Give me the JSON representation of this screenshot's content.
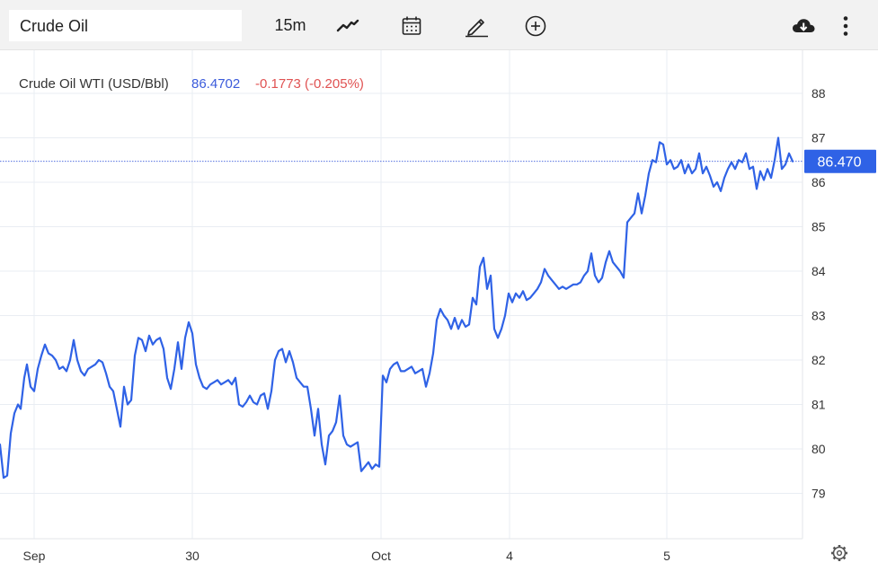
{
  "toolbar": {
    "symbol": "Crude Oil",
    "interval": "15m",
    "icons": [
      "line-chart-icon",
      "calendar-icon",
      "draw-pencil-icon",
      "add-circle-icon",
      "cloud-download-icon",
      "more-vertical-icon"
    ]
  },
  "legend": {
    "name": "Crude Oil WTI (USD/Bbl)",
    "last": "86.4702",
    "change": "-0.1773 (-0.205%)",
    "last_color": "#3b5bdb",
    "change_color": "#e05252"
  },
  "price_tag": "86.470",
  "colors": {
    "line": "#2f62e6",
    "grid": "#e9edf3",
    "tag": "#2f62e6"
  },
  "chart_data": {
    "type": "line",
    "title": "Crude Oil WTI (USD/Bbl)",
    "xlabel": "",
    "ylabel": "",
    "ylim": [
      78.0,
      89.0
    ],
    "yticks": [
      79,
      80,
      81,
      82,
      83,
      84,
      85,
      86,
      87,
      88
    ],
    "xticks": [
      {
        "label": "Sep",
        "t": 38
      },
      {
        "label": "30",
        "t": 214
      },
      {
        "label": "Oct",
        "t": 424
      },
      {
        "label": "4",
        "t": 567
      },
      {
        "label": "5",
        "t": 742
      }
    ],
    "last_value": 86.47,
    "grid": true,
    "series": [
      {
        "values": [
          [
            0,
            80.1
          ],
          [
            4,
            79.35
          ],
          [
            8,
            79.4
          ],
          [
            12,
            80.35
          ],
          [
            16,
            80.8
          ],
          [
            20,
            81
          ],
          [
            23,
            80.9
          ],
          [
            27,
            81.6
          ],
          [
            30,
            81.9
          ],
          [
            34,
            81.4
          ],
          [
            38,
            81.3
          ],
          [
            42,
            81.8
          ],
          [
            46,
            82.1
          ],
          [
            50,
            82.35
          ],
          [
            54,
            82.15
          ],
          [
            58,
            82.1
          ],
          [
            62,
            82
          ],
          [
            66,
            81.8
          ],
          [
            70,
            81.85
          ],
          [
            74,
            81.75
          ],
          [
            78,
            82
          ],
          [
            82,
            82.45
          ],
          [
            86,
            82
          ],
          [
            90,
            81.75
          ],
          [
            94,
            81.65
          ],
          [
            98,
            81.8
          ],
          [
            102,
            81.85
          ],
          [
            106,
            81.9
          ],
          [
            110,
            82
          ],
          [
            114,
            81.95
          ],
          [
            118,
            81.7
          ],
          [
            122,
            81.4
          ],
          [
            126,
            81.3
          ],
          [
            130,
            80.9
          ],
          [
            134,
            80.5
          ],
          [
            138,
            81.4
          ],
          [
            142,
            81
          ],
          [
            146,
            81.1
          ],
          [
            150,
            82.1
          ],
          [
            154,
            82.5
          ],
          [
            158,
            82.45
          ],
          [
            162,
            82.2
          ],
          [
            166,
            82.55
          ],
          [
            170,
            82.35
          ],
          [
            174,
            82.45
          ],
          [
            178,
            82.5
          ],
          [
            182,
            82.25
          ],
          [
            186,
            81.6
          ],
          [
            190,
            81.35
          ],
          [
            194,
            81.8
          ],
          [
            198,
            82.4
          ],
          [
            202,
            81.8
          ],
          [
            206,
            82.5
          ],
          [
            210,
            82.85
          ],
          [
            214,
            82.6
          ],
          [
            218,
            81.9
          ],
          [
            222,
            81.6
          ],
          [
            226,
            81.4
          ],
          [
            230,
            81.35
          ],
          [
            234,
            81.45
          ],
          [
            238,
            81.5
          ],
          [
            242,
            81.55
          ],
          [
            246,
            81.45
          ],
          [
            250,
            81.5
          ],
          [
            254,
            81.55
          ],
          [
            258,
            81.45
          ],
          [
            262,
            81.6
          ],
          [
            266,
            81
          ],
          [
            270,
            80.95
          ],
          [
            274,
            81.05
          ],
          [
            278,
            81.2
          ],
          [
            282,
            81.05
          ],
          [
            286,
            81
          ],
          [
            290,
            81.2
          ],
          [
            294,
            81.25
          ],
          [
            298,
            80.9
          ],
          [
            302,
            81.3
          ],
          [
            306,
            82
          ],
          [
            310,
            82.2
          ],
          [
            314,
            82.25
          ],
          [
            318,
            81.95
          ],
          [
            322,
            82.2
          ],
          [
            326,
            81.95
          ],
          [
            330,
            81.6
          ],
          [
            334,
            81.5
          ],
          [
            338,
            81.4
          ],
          [
            342,
            81.4
          ],
          [
            346,
            80.9
          ],
          [
            350,
            80.3
          ],
          [
            354,
            80.9
          ],
          [
            358,
            80.1
          ],
          [
            362,
            79.65
          ],
          [
            366,
            80.3
          ],
          [
            370,
            80.4
          ],
          [
            374,
            80.6
          ],
          [
            378,
            81.2
          ],
          [
            382,
            80.3
          ],
          [
            386,
            80.1
          ],
          [
            390,
            80.05
          ],
          [
            394,
            80.1
          ],
          [
            398,
            80.15
          ],
          [
            402,
            79.5
          ],
          [
            406,
            79.6
          ],
          [
            410,
            79.7
          ],
          [
            414,
            79.55
          ],
          [
            418,
            79.65
          ],
          [
            422,
            79.6
          ],
          [
            426,
            81.65
          ],
          [
            430,
            81.5
          ],
          [
            434,
            81.8
          ],
          [
            438,
            81.9
          ],
          [
            442,
            81.95
          ],
          [
            446,
            81.75
          ],
          [
            450,
            81.75
          ],
          [
            454,
            81.8
          ],
          [
            458,
            81.85
          ],
          [
            462,
            81.7
          ],
          [
            466,
            81.75
          ],
          [
            470,
            81.8
          ],
          [
            474,
            81.4
          ],
          [
            478,
            81.7
          ],
          [
            482,
            82.15
          ],
          [
            486,
            82.9
          ],
          [
            490,
            83.15
          ],
          [
            494,
            83
          ],
          [
            498,
            82.9
          ],
          [
            502,
            82.7
          ],
          [
            506,
            82.95
          ],
          [
            510,
            82.7
          ],
          [
            514,
            82.9
          ],
          [
            518,
            82.75
          ],
          [
            522,
            82.8
          ],
          [
            526,
            83.4
          ],
          [
            530,
            83.25
          ],
          [
            534,
            84.1
          ],
          [
            538,
            84.3
          ],
          [
            542,
            83.6
          ],
          [
            546,
            83.9
          ],
          [
            550,
            82.7
          ],
          [
            554,
            82.5
          ],
          [
            558,
            82.7
          ],
          [
            562,
            83
          ],
          [
            566,
            83.5
          ],
          [
            570,
            83.3
          ],
          [
            574,
            83.5
          ],
          [
            578,
            83.4
          ],
          [
            582,
            83.55
          ],
          [
            586,
            83.35
          ],
          [
            590,
            83.4
          ],
          [
            594,
            83.5
          ],
          [
            598,
            83.6
          ],
          [
            602,
            83.75
          ],
          [
            606,
            84.05
          ],
          [
            610,
            83.9
          ],
          [
            614,
            83.8
          ],
          [
            618,
            83.7
          ],
          [
            622,
            83.6
          ],
          [
            626,
            83.65
          ],
          [
            630,
            83.6
          ],
          [
            634,
            83.65
          ],
          [
            638,
            83.7
          ],
          [
            642,
            83.7
          ],
          [
            646,
            83.75
          ],
          [
            650,
            83.9
          ],
          [
            654,
            84
          ],
          [
            658,
            84.4
          ],
          [
            662,
            83.9
          ],
          [
            666,
            83.75
          ],
          [
            670,
            83.85
          ],
          [
            674,
            84.2
          ],
          [
            678,
            84.45
          ],
          [
            682,
            84.2
          ],
          [
            686,
            84.1
          ],
          [
            690,
            84.0
          ],
          [
            694,
            83.85
          ],
          [
            698,
            85.1
          ],
          [
            702,
            85.2
          ],
          [
            706,
            85.3
          ],
          [
            710,
            85.75
          ],
          [
            714,
            85.3
          ],
          [
            718,
            85.7
          ],
          [
            722,
            86.2
          ],
          [
            726,
            86.5
          ],
          [
            730,
            86.45
          ],
          [
            734,
            86.9
          ],
          [
            738,
            86.85
          ],
          [
            742,
            86.4
          ],
          [
            746,
            86.5
          ],
          [
            750,
            86.3
          ],
          [
            754,
            86.35
          ],
          [
            758,
            86.5
          ],
          [
            762,
            86.2
          ],
          [
            766,
            86.4
          ],
          [
            770,
            86.2
          ],
          [
            774,
            86.3
          ],
          [
            778,
            86.65
          ],
          [
            782,
            86.2
          ],
          [
            786,
            86.35
          ],
          [
            790,
            86.15
          ],
          [
            794,
            85.9
          ],
          [
            798,
            86
          ],
          [
            802,
            85.8
          ],
          [
            806,
            86.1
          ],
          [
            810,
            86.3
          ],
          [
            814,
            86.45
          ],
          [
            818,
            86.3
          ],
          [
            822,
            86.5
          ],
          [
            826,
            86.45
          ],
          [
            830,
            86.65
          ],
          [
            834,
            86.3
          ],
          [
            838,
            86.35
          ],
          [
            842,
            85.85
          ],
          [
            846,
            86.25
          ],
          [
            850,
            86.05
          ],
          [
            854,
            86.3
          ],
          [
            858,
            86.1
          ],
          [
            862,
            86.5
          ],
          [
            866,
            87
          ],
          [
            870,
            86.3
          ],
          [
            874,
            86.4
          ],
          [
            878,
            86.65
          ],
          [
            882,
            86.47
          ]
        ]
      }
    ]
  }
}
